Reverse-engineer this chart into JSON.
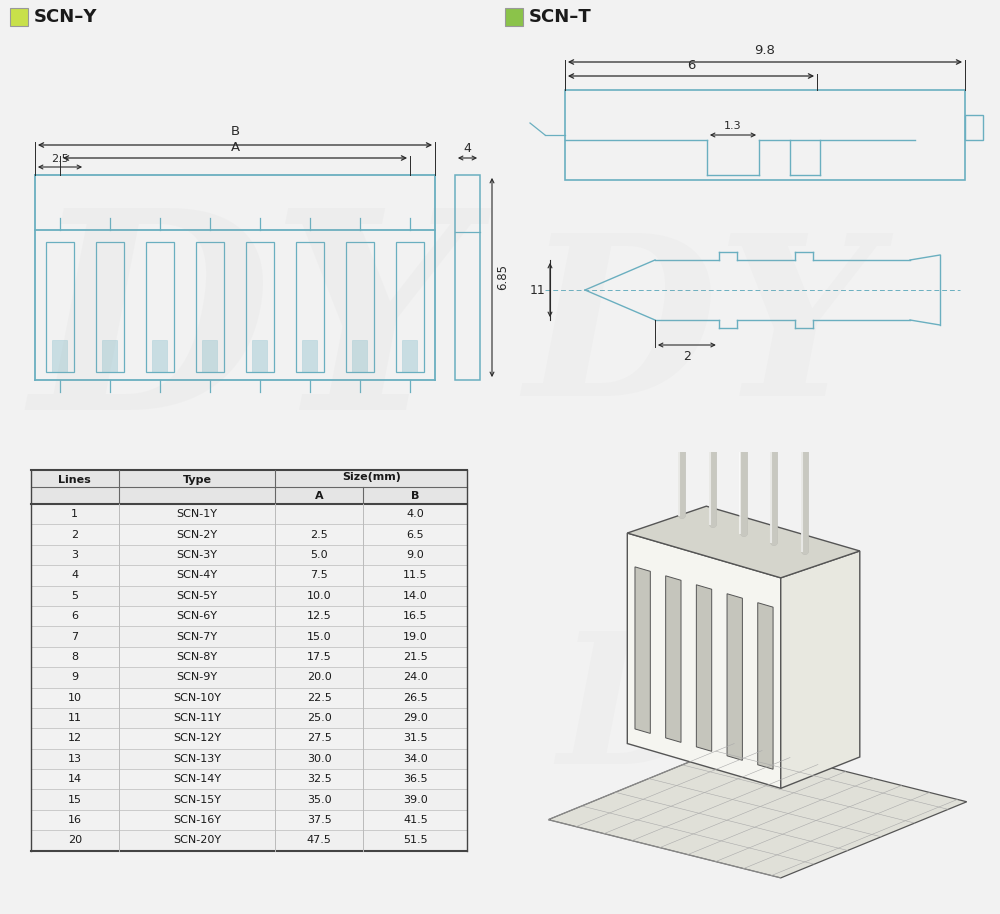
{
  "bg_color": "#f2f2f2",
  "white": "#ffffff",
  "scn_y_color": "#c8e04a",
  "scn_t_color": "#8bc34a",
  "title_scn_y": "SCN–Y",
  "title_scn_t": "SCN–T",
  "line_color": "#6aafc0",
  "dim_color": "#2a2a2a",
  "draw_color": "#3a3a3a",
  "table_data": [
    [
      "1",
      "SCN-1Y",
      "",
      "4.0"
    ],
    [
      "2",
      "SCN-2Y",
      "2.5",
      "6.5"
    ],
    [
      "3",
      "SCN-3Y",
      "5.0",
      "9.0"
    ],
    [
      "4",
      "SCN-4Y",
      "7.5",
      "11.5"
    ],
    [
      "5",
      "SCN-5Y",
      "10.0",
      "14.0"
    ],
    [
      "6",
      "SCN-6Y",
      "12.5",
      "16.5"
    ],
    [
      "7",
      "SCN-7Y",
      "15.0",
      "19.0"
    ],
    [
      "8",
      "SCN-8Y",
      "17.5",
      "21.5"
    ],
    [
      "9",
      "SCN-9Y",
      "20.0",
      "24.0"
    ],
    [
      "10",
      "SCN-10Y",
      "22.5",
      "26.5"
    ],
    [
      "11",
      "SCN-11Y",
      "25.0",
      "29.0"
    ],
    [
      "12",
      "SCN-12Y",
      "27.5",
      "31.5"
    ],
    [
      "13",
      "SCN-13Y",
      "30.0",
      "34.0"
    ],
    [
      "14",
      "SCN-14Y",
      "32.5",
      "36.5"
    ],
    [
      "15",
      "SCN-15Y",
      "35.0",
      "39.0"
    ],
    [
      "16",
      "SCN-16Y",
      "37.5",
      "41.5"
    ],
    [
      "20",
      "SCN-20Y",
      "47.5",
      "51.5"
    ]
  ]
}
